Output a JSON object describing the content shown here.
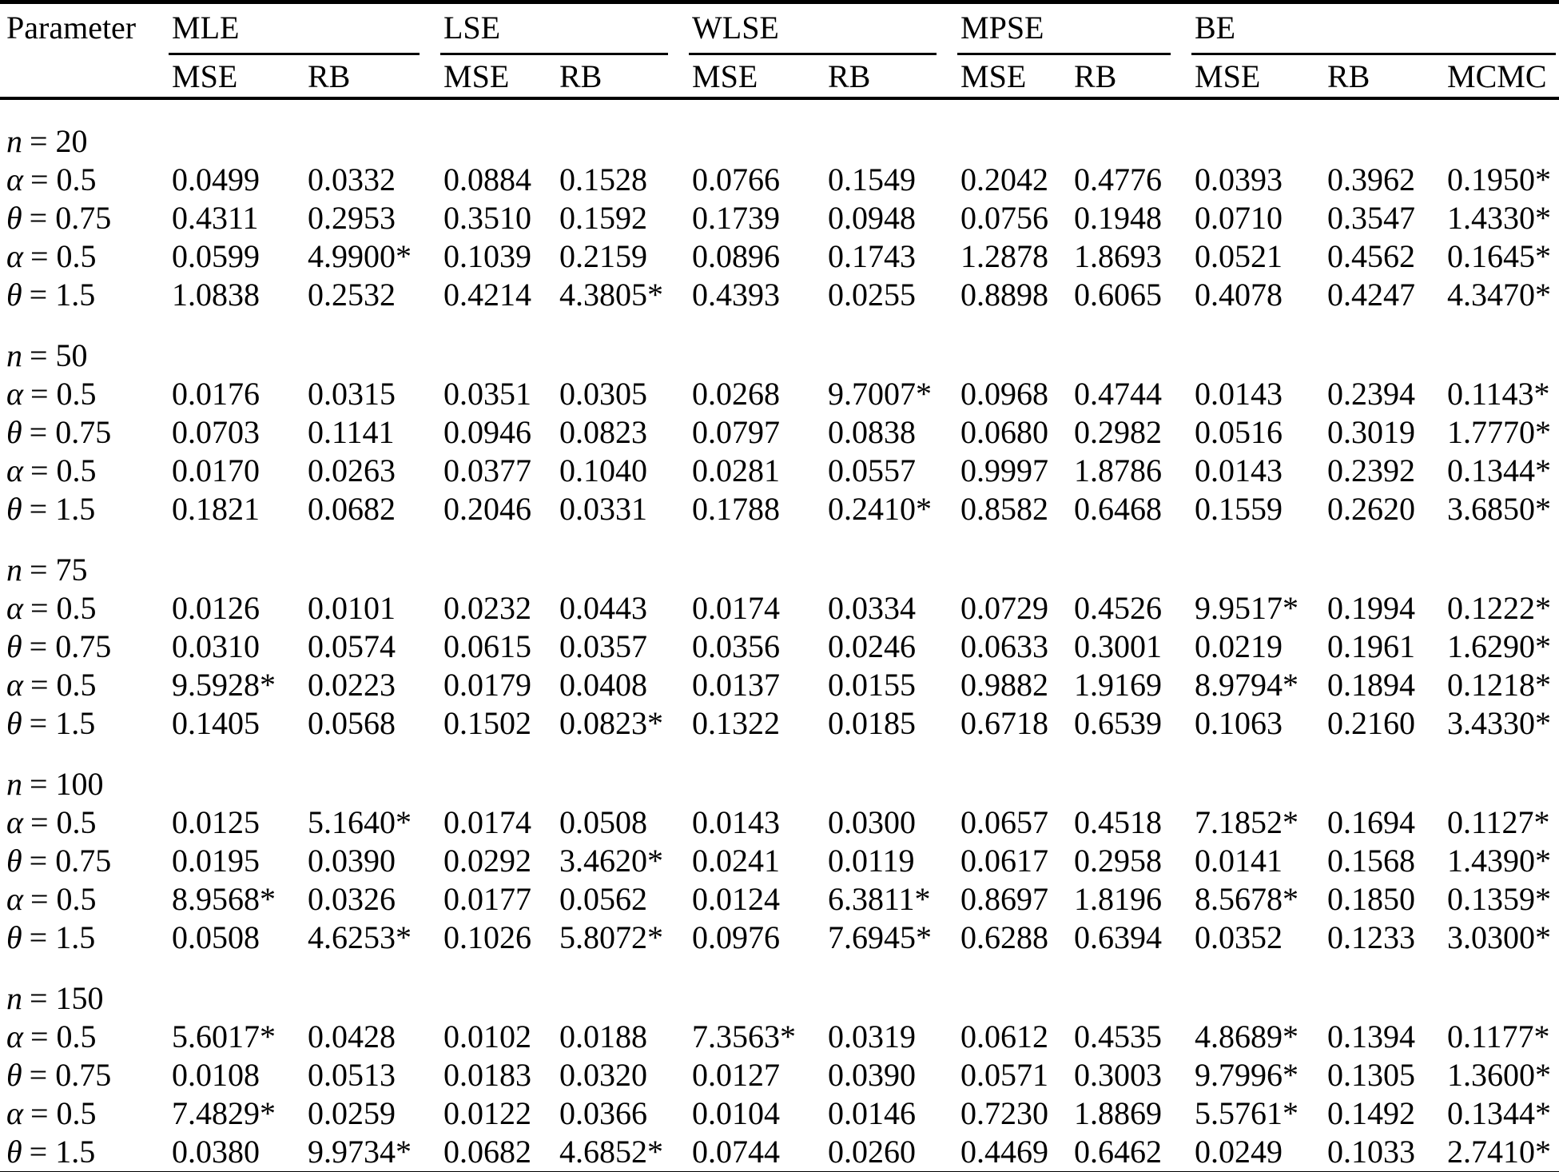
{
  "table": {
    "param_header": "Parameter",
    "groups": [
      {
        "label": "MLE",
        "cols": [
          "MSE",
          "RB"
        ]
      },
      {
        "label": "LSE",
        "cols": [
          "MSE",
          "RB"
        ]
      },
      {
        "label": "WLSE",
        "cols": [
          "MSE",
          "RB"
        ]
      },
      {
        "label": "MPSE",
        "cols": [
          "MSE",
          "RB"
        ]
      },
      {
        "label": "BE",
        "cols": [
          "MSE",
          "RB",
          "MCMC"
        ]
      }
    ],
    "sections": [
      {
        "sym": "n",
        "rest": "= 20",
        "rows": [
          {
            "sym": "α",
            "rest": "= 0.5",
            "values": [
              "0.0499",
              "0.0332",
              "0.0884",
              "0.1528",
              "0.0766",
              "0.1549",
              "0.2042",
              "0.4776",
              "0.0393",
              "0.3962",
              "0.1950*"
            ]
          },
          {
            "sym": "θ",
            "rest": "= 0.75",
            "values": [
              "0.4311",
              "0.2953",
              "0.3510",
              "0.1592",
              "0.1739",
              "0.0948",
              "0.0756",
              "0.1948",
              "0.0710",
              "0.3547",
              "1.4330*"
            ]
          },
          {
            "sym": "α",
            "rest": "= 0.5",
            "values": [
              "0.0599",
              "4.9900*",
              "0.1039",
              "0.2159",
              "0.0896",
              "0.1743",
              "1.2878",
              "1.8693",
              "0.0521",
              "0.4562",
              "0.1645*"
            ]
          },
          {
            "sym": "θ",
            "rest": "= 1.5",
            "values": [
              "1.0838",
              "0.2532",
              "0.4214",
              "4.3805*",
              "0.4393",
              "0.0255",
              "0.8898",
              "0.6065",
              "0.4078",
              "0.4247",
              "4.3470*"
            ]
          }
        ]
      },
      {
        "sym": "n",
        "rest": "= 50",
        "rows": [
          {
            "sym": "α",
            "rest": "= 0.5",
            "values": [
              "0.0176",
              "0.0315",
              "0.0351",
              "0.0305",
              "0.0268",
              "9.7007*",
              "0.0968",
              "0.4744",
              "0.0143",
              "0.2394",
              "0.1143*"
            ]
          },
          {
            "sym": "θ",
            "rest": "= 0.75",
            "values": [
              "0.0703",
              "0.1141",
              "0.0946",
              "0.0823",
              "0.0797",
              "0.0838",
              "0.0680",
              "0.2982",
              "0.0516",
              "0.3019",
              "1.7770*"
            ]
          },
          {
            "sym": "α",
            "rest": "= 0.5",
            "values": [
              "0.0170",
              "0.0263",
              "0.0377",
              "0.1040",
              "0.0281",
              "0.0557",
              "0.9997",
              "1.8786",
              "0.0143",
              "0.2392",
              "0.1344*"
            ]
          },
          {
            "sym": "θ",
            "rest": "= 1.5",
            "values": [
              "0.1821",
              "0.0682",
              "0.2046",
              "0.0331",
              "0.1788",
              "0.2410*",
              "0.8582",
              "0.6468",
              "0.1559",
              "0.2620",
              "3.6850*"
            ]
          }
        ]
      },
      {
        "sym": "n",
        "rest": "= 75",
        "rows": [
          {
            "sym": "α",
            "rest": "= 0.5",
            "values": [
              "0.0126",
              "0.0101",
              "0.0232",
              "0.0443",
              "0.0174",
              "0.0334",
              "0.0729",
              "0.4526",
              "9.9517*",
              "0.1994",
              "0.1222*"
            ]
          },
          {
            "sym": "θ",
            "rest": "= 0.75",
            "values": [
              "0.0310",
              "0.0574",
              "0.0615",
              "0.0357",
              "0.0356",
              "0.0246",
              "0.0633",
              "0.3001",
              "0.0219",
              "0.1961",
              "1.6290*"
            ]
          },
          {
            "sym": "α",
            "rest": "= 0.5",
            "values": [
              "9.5928*",
              "0.0223",
              "0.0179",
              "0.0408",
              "0.0137",
              "0.0155",
              "0.9882",
              "1.9169",
              "8.9794*",
              "0.1894",
              "0.1218*"
            ]
          },
          {
            "sym": "θ",
            "rest": "= 1.5",
            "values": [
              "0.1405",
              "0.0568",
              "0.1502",
              "0.0823*",
              "0.1322",
              "0.0185",
              "0.6718",
              "0.6539",
              "0.1063",
              "0.2160",
              "3.4330*"
            ]
          }
        ]
      },
      {
        "sym": "n",
        "rest": "= 100",
        "rows": [
          {
            "sym": "α",
            "rest": "= 0.5",
            "values": [
              "0.0125",
              "5.1640*",
              "0.0174",
              "0.0508",
              "0.0143",
              "0.0300",
              "0.0657",
              "0.4518",
              "7.1852*",
              "0.1694",
              "0.1127*"
            ]
          },
          {
            "sym": "θ",
            "rest": "= 0.75",
            "values": [
              "0.0195",
              "0.0390",
              "0.0292",
              "3.4620*",
              "0.0241",
              "0.0119",
              "0.0617",
              "0.2958",
              "0.0141",
              "0.1568",
              "1.4390*"
            ]
          },
          {
            "sym": "α",
            "rest": "= 0.5",
            "values": [
              "8.9568*",
              "0.0326",
              "0.0177",
              "0.0562",
              "0.0124",
              "6.3811*",
              "0.8697",
              "1.8196",
              "8.5678*",
              "0.1850",
              "0.1359*"
            ]
          },
          {
            "sym": "θ",
            "rest": "= 1.5",
            "values": [
              "0.0508",
              "4.6253*",
              "0.1026",
              "5.8072*",
              "0.0976",
              "7.6945*",
              "0.6288",
              "0.6394",
              "0.0352",
              "0.1233",
              "3.0300*"
            ]
          }
        ]
      },
      {
        "sym": "n",
        "rest": "= 150",
        "rows": [
          {
            "sym": "α",
            "rest": "= 0.5",
            "values": [
              "5.6017*",
              "0.0428",
              "0.0102",
              "0.0188",
              "7.3563*",
              "0.0319",
              "0.0612",
              "0.4535",
              "4.8689*",
              "0.1394",
              "0.1177*"
            ]
          },
          {
            "sym": "θ",
            "rest": "= 0.75",
            "values": [
              "0.0108",
              "0.0513",
              "0.0183",
              "0.0320",
              "0.0127",
              "0.0390",
              "0.0571",
              "0.3003",
              "9.7996*",
              "0.1305",
              "1.3600*"
            ]
          },
          {
            "sym": "α",
            "rest": "= 0.5",
            "values": [
              "7.4829*",
              "0.0259",
              "0.0122",
              "0.0366",
              "0.0104",
              "0.0146",
              "0.7230",
              "1.8869",
              "5.5761*",
              "0.1492",
              "0.1344*"
            ]
          },
          {
            "sym": "θ",
            "rest": "= 1.5",
            "values": [
              "0.0380",
              "9.9734*",
              "0.0682",
              "4.6852*",
              "0.0744",
              "0.0260",
              "0.4469",
              "0.6462",
              "0.0249",
              "0.1033",
              "2.7410*"
            ]
          }
        ]
      }
    ]
  }
}
